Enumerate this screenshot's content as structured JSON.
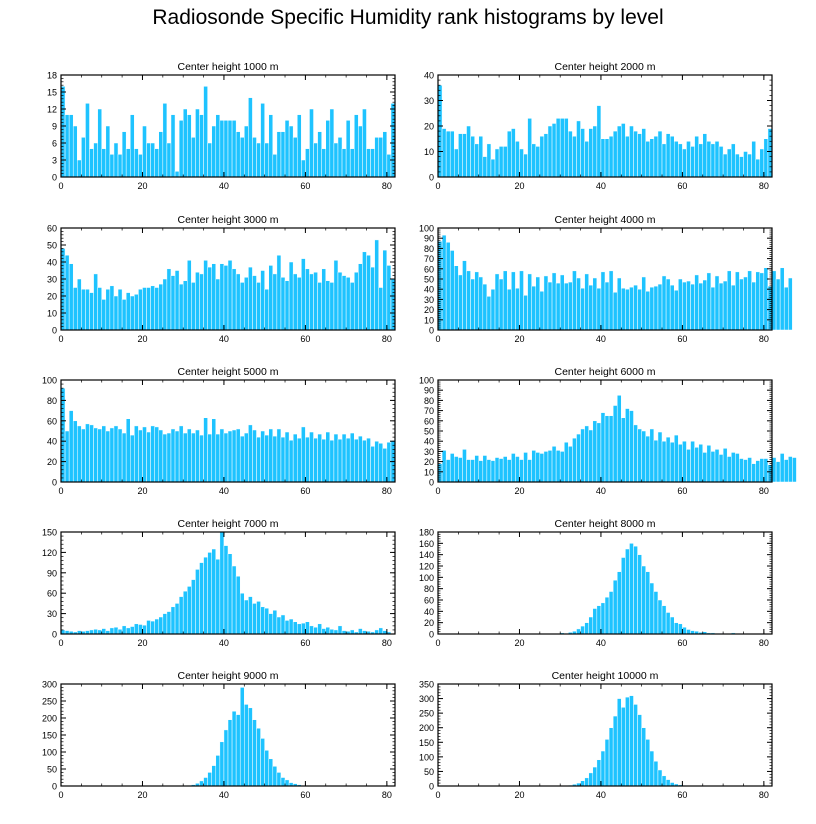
{
  "title": "Radiosonde Specific Humidity rank histograms by level",
  "colors": {
    "bar": "#1ec3ff",
    "bar_edge": "#ffffff",
    "axis": "#000000"
  },
  "chart_data": [
    {
      "type": "bar",
      "title": "Center height 1000 m",
      "xlim": [
        0,
        82
      ],
      "ylim": [
        0,
        18
      ],
      "yticks": [
        0,
        3,
        6,
        9,
        12,
        15,
        18
      ],
      "xticks": [
        0,
        20,
        40,
        60,
        80
      ],
      "x_start": 0,
      "values": [
        16,
        11,
        11,
        9,
        3,
        7,
        13,
        5,
        6,
        12,
        5,
        9,
        4,
        6,
        4,
        8,
        5,
        11,
        5,
        4,
        9,
        6,
        6,
        5,
        8,
        13,
        6,
        11,
        1,
        10,
        12,
        11,
        7,
        12,
        11,
        16,
        6,
        9,
        11,
        10,
        10,
        10,
        10,
        8,
        7,
        9,
        14,
        7,
        6,
        13,
        6,
        11,
        4,
        8,
        8,
        10,
        9,
        7,
        11,
        3,
        5,
        12,
        6,
        8,
        5,
        10,
        12,
        6,
        7,
        5,
        10,
        5,
        11,
        9,
        12,
        5,
        5,
        7,
        7,
        8,
        4,
        13
      ]
    },
    {
      "type": "bar",
      "title": "Center height 2000 m",
      "xlim": [
        0,
        82
      ],
      "ylim": [
        0,
        40
      ],
      "yticks": [
        0,
        10,
        20,
        30,
        40
      ],
      "xticks": [
        0,
        20,
        40,
        60,
        80
      ],
      "x_start": 0,
      "values": [
        36,
        19,
        18,
        18,
        11,
        17,
        17,
        20,
        16,
        13,
        16,
        8,
        13,
        7,
        11,
        12,
        12,
        18,
        19,
        14,
        11,
        9,
        23,
        13,
        12,
        16,
        17,
        20,
        21,
        23,
        23,
        23,
        18,
        16,
        22,
        19,
        14,
        19,
        20,
        28,
        15,
        15,
        16,
        18,
        20,
        21,
        16,
        20,
        18,
        17,
        19,
        14,
        15,
        16,
        18,
        13,
        17,
        16,
        14,
        13,
        11,
        14,
        12,
        16,
        13,
        17,
        14,
        13,
        14,
        12,
        9,
        11,
        13,
        9,
        8,
        10,
        9,
        14,
        7,
        11,
        15,
        19
      ]
    },
    {
      "type": "bar",
      "title": "Center height 3000 m",
      "xlim": [
        0,
        82
      ],
      "ylim": [
        0,
        60
      ],
      "yticks": [
        0,
        10,
        20,
        30,
        40,
        50,
        60
      ],
      "xticks": [
        0,
        20,
        40,
        60,
        80
      ],
      "x_start": 0,
      "values": [
        48,
        44,
        39,
        25,
        30,
        24,
        24,
        22,
        33,
        25,
        18,
        24,
        26,
        20,
        24,
        18,
        22,
        20,
        21,
        24,
        25,
        25,
        26,
        25,
        27,
        30,
        36,
        32,
        35,
        27,
        29,
        41,
        28,
        34,
        33,
        41,
        37,
        39,
        30,
        39,
        38,
        41,
        36,
        33,
        28,
        31,
        37,
        32,
        28,
        35,
        24,
        38,
        33,
        44,
        31,
        29,
        40,
        33,
        31,
        42,
        36,
        33,
        34,
        28,
        36,
        29,
        28,
        41,
        34,
        32,
        31,
        28,
        34,
        39,
        46,
        44,
        37,
        53,
        25,
        47,
        38,
        30
      ]
    },
    {
      "type": "bar",
      "title": "Center height 4000 m",
      "xlim": [
        0,
        82
      ],
      "ylim": [
        0,
        100
      ],
      "yticks": [
        0,
        10,
        20,
        30,
        40,
        50,
        60,
        70,
        80,
        90,
        100
      ],
      "xticks": [
        0,
        20,
        40,
        60,
        80
      ],
      "x_start": 0,
      "values": [
        87,
        93,
        86,
        78,
        63,
        54,
        68,
        58,
        50,
        57,
        52,
        45,
        33,
        40,
        55,
        50,
        58,
        40,
        57,
        41,
        58,
        34,
        55,
        43,
        52,
        38,
        53,
        47,
        56,
        46,
        54,
        46,
        47,
        58,
        51,
        41,
        55,
        44,
        51,
        41,
        57,
        47,
        58,
        37,
        51,
        41,
        40,
        42,
        44,
        40,
        52,
        38,
        42,
        43,
        45,
        53,
        50,
        44,
        39,
        50,
        47,
        48,
        45,
        54,
        46,
        49,
        56,
        42,
        53,
        46,
        48,
        58,
        44,
        57,
        50,
        52,
        58,
        47,
        57,
        56,
        61,
        43,
        58,
        50,
        61,
        42,
        51
      ]
    },
    {
      "type": "bar",
      "title": "Center height 5000 m",
      "xlim": [
        0,
        82
      ],
      "ylim": [
        0,
        100
      ],
      "yticks": [
        0,
        20,
        40,
        60,
        80,
        100
      ],
      "xticks": [
        0,
        20,
        40,
        60,
        80
      ],
      "x_start": 0,
      "values": [
        92,
        50,
        70,
        60,
        55,
        52,
        57,
        56,
        53,
        52,
        55,
        50,
        53,
        55,
        52,
        48,
        62,
        46,
        55,
        51,
        54,
        49,
        55,
        54,
        51,
        47,
        48,
        52,
        50,
        55,
        48,
        52,
        48,
        51,
        46,
        63,
        47,
        62,
        47,
        52,
        48,
        50,
        51,
        52,
        45,
        48,
        56,
        51,
        44,
        50,
        46,
        52,
        45,
        52,
        44,
        49,
        41,
        47,
        43,
        54,
        44,
        49,
        43,
        47,
        42,
        49,
        41,
        47,
        42,
        47,
        43,
        48,
        42,
        45,
        41,
        43,
        35,
        40,
        38,
        33,
        39,
        40
      ]
    },
    {
      "type": "bar",
      "title": "Center height 6000 m",
      "xlim": [
        0,
        82
      ],
      "ylim": [
        0,
        100
      ],
      "yticks": [
        0,
        10,
        20,
        30,
        40,
        50,
        60,
        70,
        80,
        90,
        100
      ],
      "xticks": [
        0,
        20,
        40,
        60,
        80
      ],
      "x_start": 0,
      "values": [
        18,
        31,
        22,
        28,
        25,
        24,
        32,
        22,
        22,
        26,
        21,
        26,
        22,
        21,
        24,
        23,
        25,
        22,
        28,
        25,
        22,
        29,
        22,
        31,
        29,
        28,
        30,
        31,
        35,
        31,
        30,
        39,
        35,
        43,
        47,
        52,
        55,
        51,
        60,
        58,
        68,
        65,
        65,
        75,
        85,
        63,
        72,
        70,
        56,
        52,
        50,
        45,
        52,
        41,
        49,
        40,
        44,
        39,
        46,
        37,
        40,
        32,
        40,
        34,
        37,
        29,
        36,
        30,
        32,
        27,
        33,
        25,
        29,
        28,
        23,
        22,
        24,
        18,
        21,
        23,
        23,
        17,
        24,
        20,
        28,
        22,
        25,
        24
      ]
    },
    {
      "type": "bar",
      "title": "Center height 7000 m",
      "xlim": [
        0,
        82
      ],
      "ylim": [
        0,
        150
      ],
      "yticks": [
        0,
        30,
        60,
        90,
        120,
        150
      ],
      "xticks": [
        0,
        20,
        40,
        60,
        80
      ],
      "x_start": 0,
      "values": [
        6,
        5,
        4,
        3,
        5,
        4,
        5,
        6,
        7,
        6,
        8,
        5,
        9,
        10,
        7,
        12,
        9,
        11,
        15,
        14,
        13,
        20,
        19,
        22,
        25,
        30,
        33,
        40,
        45,
        55,
        63,
        70,
        80,
        95,
        105,
        113,
        120,
        125,
        110,
        150,
        130,
        118,
        100,
        85,
        60,
        50,
        55,
        45,
        48,
        40,
        38,
        30,
        35,
        25,
        28,
        20,
        22,
        18,
        15,
        16,
        18,
        12,
        10,
        15,
        8,
        10,
        7,
        6,
        12,
        5,
        4,
        6,
        3,
        8,
        5,
        4,
        3,
        6,
        9,
        5,
        3
      ]
    },
    {
      "type": "bar",
      "title": "Center height 8000 m",
      "xlim": [
        0,
        82
      ],
      "ylim": [
        0,
        180
      ],
      "yticks": [
        0,
        20,
        40,
        60,
        80,
        100,
        120,
        140,
        160,
        180
      ],
      "xticks": [
        0,
        20,
        40,
        60,
        80
      ],
      "x_start": 0,
      "values": [
        0,
        0,
        0,
        0,
        0,
        0,
        0,
        0,
        0,
        0,
        0,
        0,
        0,
        0,
        0,
        0,
        0,
        0,
        0,
        0,
        0,
        0,
        0,
        0,
        0,
        0,
        0,
        0,
        0,
        0,
        2,
        1,
        3,
        5,
        9,
        14,
        20,
        30,
        45,
        50,
        55,
        65,
        75,
        95,
        110,
        135,
        150,
        160,
        155,
        140,
        120,
        110,
        90,
        75,
        60,
        50,
        38,
        30,
        20,
        18,
        12,
        8,
        6,
        5,
        3,
        4,
        2,
        2,
        1,
        1,
        0,
        0,
        2,
        0,
        0,
        0,
        0,
        0,
        0,
        0,
        0,
        0
      ]
    },
    {
      "type": "bar",
      "title": "Center height 9000 m",
      "xlim": [
        0,
        82
      ],
      "ylim": [
        0,
        300
      ],
      "yticks": [
        0,
        50,
        100,
        150,
        200,
        250,
        300
      ],
      "xticks": [
        0,
        20,
        40,
        60,
        80
      ],
      "x_start": 0,
      "values": [
        0,
        0,
        0,
        0,
        0,
        0,
        0,
        0,
        0,
        0,
        0,
        0,
        0,
        0,
        0,
        0,
        0,
        0,
        0,
        0,
        0,
        0,
        0,
        0,
        0,
        0,
        0,
        0,
        0,
        0,
        1,
        2,
        4,
        8,
        15,
        25,
        40,
        60,
        90,
        130,
        165,
        195,
        220,
        210,
        290,
        240,
        230,
        195,
        170,
        140,
        105,
        80,
        58,
        40,
        25,
        18,
        10,
        7,
        4,
        2,
        1,
        1,
        0,
        0,
        0,
        0,
        0,
        0,
        0,
        0,
        0,
        0,
        0,
        0,
        0,
        0,
        0,
        0,
        0,
        0,
        0,
        0
      ]
    },
    {
      "type": "bar",
      "title": "Center height 10000 m",
      "xlim": [
        0,
        82
      ],
      "ylim": [
        0,
        350
      ],
      "yticks": [
        0,
        50,
        100,
        150,
        200,
        250,
        300,
        350
      ],
      "xticks": [
        0,
        20,
        40,
        60,
        80
      ],
      "x_start": 0,
      "values": [
        0,
        0,
        0,
        0,
        0,
        0,
        0,
        0,
        0,
        0,
        0,
        0,
        0,
        0,
        0,
        0,
        0,
        0,
        0,
        0,
        0,
        0,
        0,
        0,
        0,
        0,
        0,
        0,
        0,
        0,
        1,
        1,
        3,
        6,
        10,
        18,
        28,
        45,
        65,
        90,
        120,
        160,
        200,
        240,
        300,
        270,
        305,
        310,
        280,
        245,
        200,
        160,
        120,
        85,
        55,
        35,
        22,
        12,
        7,
        4,
        2,
        1,
        1,
        0,
        0,
        0,
        0,
        0,
        0,
        0,
        0,
        0,
        0,
        0,
        0,
        0,
        0,
        0,
        0,
        0,
        0,
        0
      ]
    }
  ]
}
